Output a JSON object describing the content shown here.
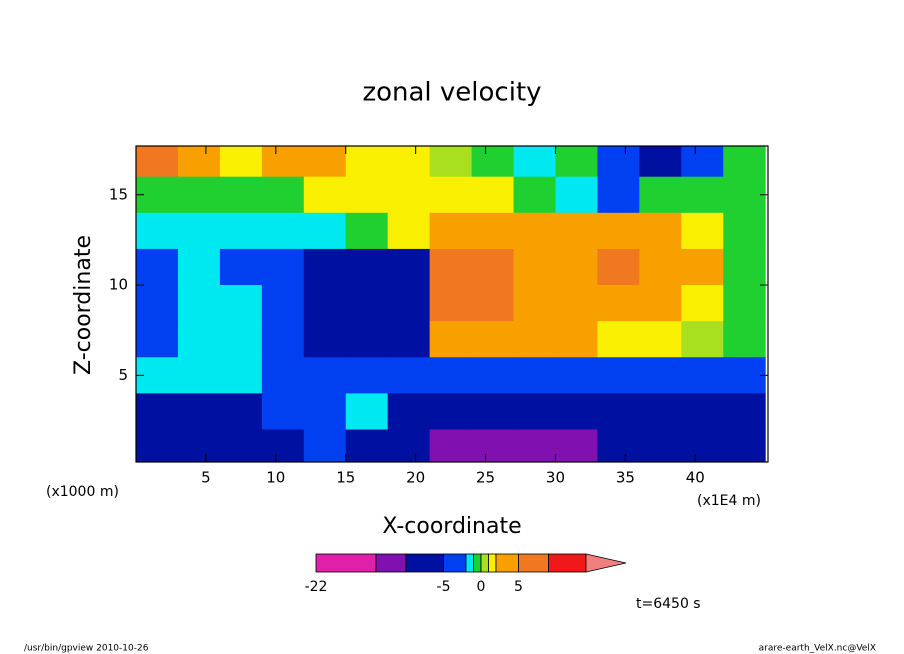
{
  "chart_data": {
    "type": "contour",
    "title": "zonal velocity",
    "xlabel": "X-coordinate",
    "ylabel": "Z-coordinate",
    "x_unit": "(x1E4 m)",
    "y_unit": "(x1000 m)",
    "xlim": [
      0,
      45.2
    ],
    "ylim": [
      0.2,
      17.7
    ],
    "xticks": [
      5,
      10,
      15,
      20,
      25,
      30,
      35,
      40
    ],
    "yticks": [
      5,
      10,
      15
    ],
    "x": [
      1.5,
      4.5,
      7.5,
      10.5,
      13.5,
      16.5,
      19.5,
      22.5,
      25.5,
      28.5,
      31.5,
      34.5,
      37.5,
      40.5,
      43.5
    ],
    "z": [
      17,
      15,
      13,
      11,
      9,
      7,
      5,
      3,
      1
    ],
    "values": [
      [
        6,
        3,
        1.5,
        3,
        3,
        1.5,
        1,
        0.5,
        -0.5,
        -1.5,
        -0.5,
        -3,
        -6,
        -3,
        -0.5
      ],
      [
        -0.5,
        -0.5,
        -0.5,
        -0.5,
        1.5,
        1.5,
        1,
        1.5,
        1.5,
        -0.5,
        -1.5,
        -2.5,
        -0.5,
        -0.5,
        -0.5
      ],
      [
        -1.5,
        -1.5,
        -2,
        -1.5,
        -1.5,
        -0.5,
        1.5,
        3,
        3,
        3.5,
        3.5,
        3.5,
        3.5,
        1.5,
        -0.5
      ],
      [
        -3,
        -1.5,
        -3,
        -3,
        -6,
        -6,
        -7,
        6,
        7,
        4,
        4,
        6,
        4,
        3,
        -0.5
      ],
      [
        -3,
        -1.5,
        -1.5,
        -3,
        -6,
        -7,
        -7,
        6,
        6,
        4,
        4,
        3.5,
        3.5,
        1.5,
        -0.5
      ],
      [
        -3,
        -1.5,
        -1.5,
        -3,
        -6,
        -7,
        -6,
        3,
        4,
        3.5,
        3.5,
        1.5,
        1.5,
        0.5,
        -1
      ],
      [
        -1.5,
        -1.5,
        -1.5,
        -3,
        -3,
        -3,
        -3,
        -3,
        -3,
        -3,
        -3,
        -3,
        -3,
        -3,
        -3
      ],
      [
        -6,
        -6,
        -6,
        -3,
        -3,
        -1.5,
        -6,
        -6,
        -7,
        -7,
        -7,
        -6,
        -6,
        -6,
        -6
      ],
      [
        -6,
        -6,
        -6,
        -6,
        -3,
        -6,
        -7,
        -12,
        -12,
        -12,
        -12,
        -7,
        -7,
        -7,
        -6
      ]
    ],
    "levels": [
      -22,
      -14,
      -10,
      -5,
      -2,
      -1,
      0,
      1,
      2,
      5,
      9,
      14
    ],
    "colors": [
      "#e020a8",
      "#8010b0",
      "#0010a0",
      "#0040f0",
      "#00e8f0",
      "#20d030",
      "#a8e020",
      "#f8f000",
      "#f8a000",
      "#f07820",
      "#f01818"
    ],
    "extend_color": "#f08080",
    "colorbar_ticks": [
      -22,
      -5,
      0,
      5
    ],
    "time_label": "t=6450 s",
    "footer_left": "/usr/bin/gpview   2010-10-26",
    "footer_right": "arare-earth_VelX.nc@VelX"
  }
}
